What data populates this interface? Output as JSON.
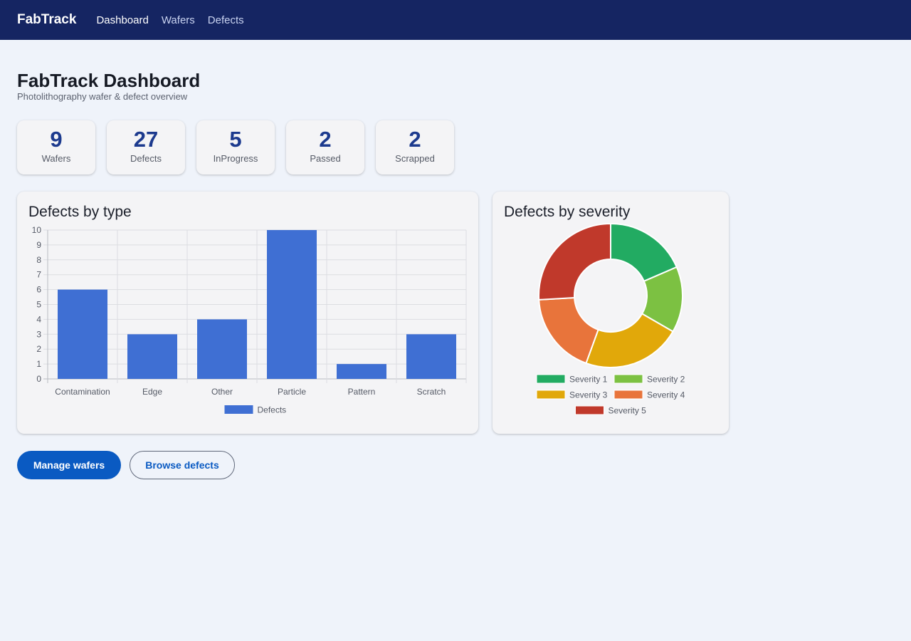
{
  "app": {
    "brand": "FabTrack",
    "nav": [
      {
        "label": "Dashboard",
        "active": true
      },
      {
        "label": "Wafers",
        "active": false
      },
      {
        "label": "Defects",
        "active": false
      }
    ]
  },
  "page": {
    "title": "FabTrack Dashboard",
    "subtitle": "Photolithography wafer & defect overview"
  },
  "stats": [
    {
      "value": "9",
      "label": "Wafers"
    },
    {
      "value": "27",
      "label": "Defects"
    },
    {
      "value": "5",
      "label": "InProgress"
    },
    {
      "value": "2",
      "label": "Passed"
    },
    {
      "value": "2",
      "label": "Scrapped"
    }
  ],
  "panels": {
    "bar_title": "Defects by type",
    "donut_title": "Defects by severity"
  },
  "actions": {
    "manage_wafers": "Manage wafers",
    "browse_defects": "Browse defects"
  },
  "chart_data": [
    {
      "type": "bar",
      "title": "Defects by type",
      "categories": [
        "Contamination",
        "Edge",
        "Other",
        "Particle",
        "Pattern",
        "Scratch"
      ],
      "series": [
        {
          "name": "Defects",
          "values": [
            6,
            3,
            4,
            10,
            1,
            3
          ],
          "color": "#3f6fd3"
        }
      ],
      "ylim": [
        0,
        10
      ],
      "yticks": [
        0,
        1,
        2,
        3,
        4,
        5,
        6,
        7,
        8,
        9,
        10
      ],
      "grid": true,
      "legend": "bottom"
    },
    {
      "type": "pie",
      "donut": true,
      "title": "Defects by severity",
      "labels": [
        "Severity 1",
        "Severity 2",
        "Severity 3",
        "Severity 4",
        "Severity 5"
      ],
      "values": [
        5,
        4,
        6,
        5,
        7
      ],
      "colors": [
        "#22ab62",
        "#7cc142",
        "#e1a80a",
        "#e8743b",
        "#c0392b"
      ],
      "legend": "bottom"
    }
  ]
}
